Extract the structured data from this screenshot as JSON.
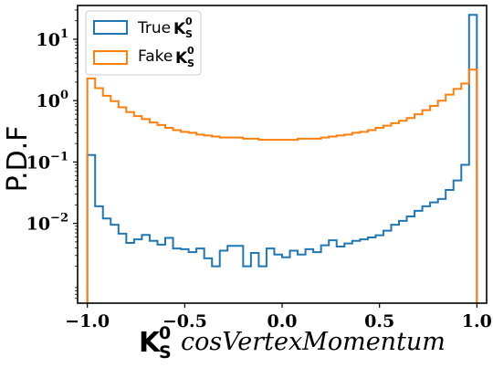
{
  "chart_data": {
    "type": "histogram-step",
    "xlim": [
      -1.05,
      1.05
    ],
    "ylim_log10": [
      -3.3,
      1.55
    ],
    "yscale": "log",
    "ylabel": "P.D.F",
    "xlabel": {
      "symbol": "K",
      "sub": "S",
      "sup": "0",
      "variable": "cosVertexMomentum"
    },
    "x_ticks": [
      -1.0,
      -0.5,
      0.0,
      0.5,
      1.0
    ],
    "x_tick_labels": [
      "−1.0",
      "−0.5",
      "0.0",
      "0.5",
      "1.0"
    ],
    "y_ticks_log10": [
      -2,
      -1,
      0,
      1
    ],
    "y_tick_labels": [
      {
        "base": "10",
        "exp": "−2"
      },
      {
        "base": "10",
        "exp": "−1"
      },
      {
        "base": "10",
        "exp": "0"
      },
      {
        "base": "10",
        "exp": "1"
      }
    ],
    "legend": {
      "placement": "top-left",
      "entries": [
        {
          "prefix": "True",
          "symbol": "K",
          "sub": "S",
          "sup": "0",
          "color": "#1f77b4"
        },
        {
          "prefix": "Fake",
          "symbol": "K",
          "sub": "S",
          "sup": "0",
          "color": "#ff7f0e"
        }
      ]
    },
    "bins": {
      "start": -1.0,
      "end": 1.0,
      "count": 50
    },
    "series": [
      {
        "name": "True K_S^0",
        "color": "#1f77b4",
        "values": [
          0.13,
          0.019,
          0.012,
          0.0095,
          0.0068,
          0.0048,
          0.0055,
          0.0065,
          0.0052,
          0.0045,
          0.0058,
          0.0039,
          0.0038,
          0.0034,
          0.0039,
          0.0027,
          0.002,
          0.0036,
          0.0043,
          0.0043,
          0.002,
          0.0033,
          0.002,
          0.0039,
          0.0031,
          0.0028,
          0.0036,
          0.0031,
          0.0038,
          0.0034,
          0.0044,
          0.0053,
          0.0042,
          0.0047,
          0.0052,
          0.0055,
          0.0059,
          0.0064,
          0.0076,
          0.0095,
          0.011,
          0.013,
          0.016,
          0.019,
          0.022,
          0.025,
          0.035,
          0.05,
          0.09,
          25.0
        ]
      },
      {
        "name": "Fake K_S^0",
        "color": "#ff7f0e",
        "values": [
          2.3,
          1.6,
          1.2,
          0.98,
          0.78,
          0.65,
          0.56,
          0.5,
          0.44,
          0.4,
          0.36,
          0.33,
          0.31,
          0.3,
          0.28,
          0.27,
          0.26,
          0.25,
          0.25,
          0.25,
          0.24,
          0.24,
          0.23,
          0.23,
          0.23,
          0.23,
          0.23,
          0.24,
          0.24,
          0.24,
          0.25,
          0.26,
          0.27,
          0.28,
          0.3,
          0.31,
          0.33,
          0.36,
          0.39,
          0.43,
          0.47,
          0.52,
          0.6,
          0.7,
          0.82,
          1.0,
          1.25,
          1.55,
          1.9,
          3.2
        ]
      }
    ]
  }
}
